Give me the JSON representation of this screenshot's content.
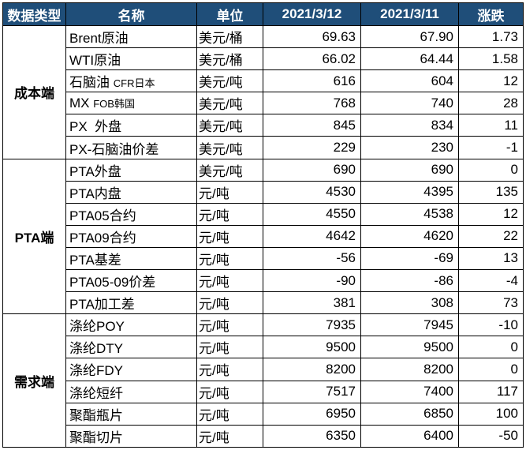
{
  "headers": [
    "数据类型",
    "名称",
    "单位",
    "2021/3/12",
    "2021/3/11",
    "涨跌"
  ],
  "groups": [
    {
      "label": "成本端",
      "rows": [
        {
          "name": "Brent原油",
          "name_small": "",
          "unit": "美元/桶",
          "d1": "69.63",
          "d2": "67.90",
          "chg": "1.73"
        },
        {
          "name": "WTI原油",
          "name_small": "",
          "unit": "美元/桶",
          "d1": "66.02",
          "d2": "64.44",
          "chg": "1.58"
        },
        {
          "name": "石脑油 ",
          "name_small": "CFR日本",
          "unit": "美元/吨",
          "d1": "616",
          "d2": "604",
          "chg": "12"
        },
        {
          "name": "MX ",
          "name_small": "FOB韩国",
          "unit": "美元/吨",
          "d1": "768",
          "d2": "740",
          "chg": "28"
        },
        {
          "name": "PX  外盘",
          "name_small": "",
          "unit": "美元/吨",
          "d1": "845",
          "d2": "834",
          "chg": "11"
        },
        {
          "name": "PX-石脑油价差",
          "name_small": "",
          "unit": "美元/吨",
          "d1": "229",
          "d2": "230",
          "chg": "-1"
        }
      ]
    },
    {
      "label": "PTA端",
      "rows": [
        {
          "name": "PTA外盘",
          "name_small": "",
          "unit": "美元/吨",
          "d1": "690",
          "d2": "690",
          "chg": "0"
        },
        {
          "name": "PTA内盘",
          "name_small": "",
          "unit": "元/吨",
          "d1": "4530",
          "d2": "4395",
          "chg": "135"
        },
        {
          "name": "PTA05合约",
          "name_small": "",
          "unit": "元/吨",
          "d1": "4550",
          "d2": "4538",
          "chg": "12"
        },
        {
          "name": "PTA09合约",
          "name_small": "",
          "unit": "元/吨",
          "d1": "4642",
          "d2": "4620",
          "chg": "22"
        },
        {
          "name": "PTA基差",
          "name_small": "",
          "unit": "元/吨",
          "d1": "-56",
          "d2": "-69",
          "chg": "13"
        },
        {
          "name": "PTA05-09价差",
          "name_small": "",
          "unit": "元/吨",
          "d1": "-90",
          "d2": "-86",
          "chg": "-4"
        },
        {
          "name": "PTA加工差",
          "name_small": "",
          "unit": "元/吨",
          "d1": "381",
          "d2": "308",
          "chg": "73"
        }
      ]
    },
    {
      "label": "需求端",
      "rows": [
        {
          "name": "涤纶POY",
          "name_small": "",
          "unit": "元/吨",
          "d1": "7935",
          "d2": "7945",
          "chg": "-10"
        },
        {
          "name": "涤纶DTY",
          "name_small": "",
          "unit": "元/吨",
          "d1": "9500",
          "d2": "9500",
          "chg": "0"
        },
        {
          "name": "涤纶FDY",
          "name_small": "",
          "unit": "元/吨",
          "d1": "8200",
          "d2": "8200",
          "chg": "0"
        },
        {
          "name": "涤纶短纤",
          "name_small": "",
          "unit": "元/吨",
          "d1": "7517",
          "d2": "7400",
          "chg": "117"
        },
        {
          "name": "聚酯瓶片",
          "name_small": "",
          "unit": "元/吨",
          "d1": "6950",
          "d2": "6850",
          "chg": "100"
        },
        {
          "name": "聚酯切片",
          "name_small": "",
          "unit": "元/吨",
          "d1": "6350",
          "d2": "6400",
          "chg": "-50"
        }
      ]
    }
  ]
}
